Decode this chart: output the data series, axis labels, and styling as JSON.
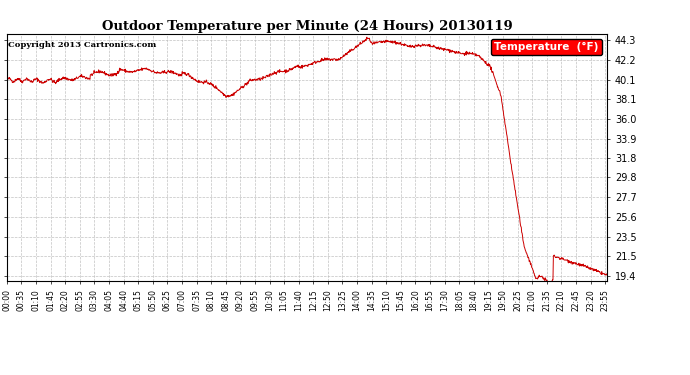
{
  "title": "Outdoor Temperature per Minute (24 Hours) 20130119",
  "copyright": "Copyright 2013 Cartronics.com",
  "legend_label": "Temperature  (°F)",
  "line_color": "#cc0000",
  "bg_color": "#ffffff",
  "grid_color": "#bbbbbb",
  "yticks": [
    19.4,
    21.5,
    23.5,
    25.6,
    27.7,
    29.8,
    31.8,
    33.9,
    36.0,
    38.1,
    40.1,
    42.2,
    44.3
  ],
  "ylim": [
    18.8,
    45.0
  ],
  "xtick_interval_minutes": 35,
  "figwidth": 6.9,
  "figheight": 3.75,
  "dpi": 100
}
